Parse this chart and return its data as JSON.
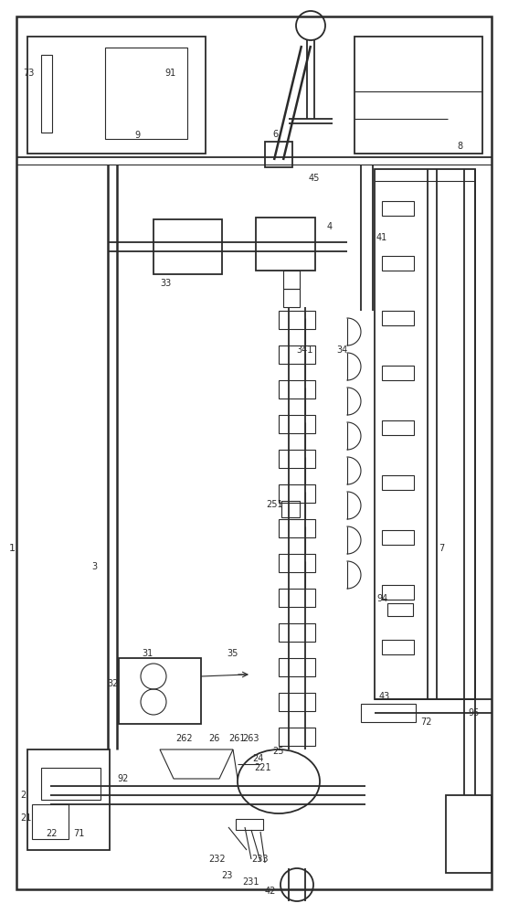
{
  "bg_color": "#ffffff",
  "lc": "#2a2a2a",
  "lw_main": 1.3,
  "lw_thick": 1.8,
  "lw_thin": 0.8,
  "figw": 5.56,
  "figh": 10.0,
  "dpi": 100
}
